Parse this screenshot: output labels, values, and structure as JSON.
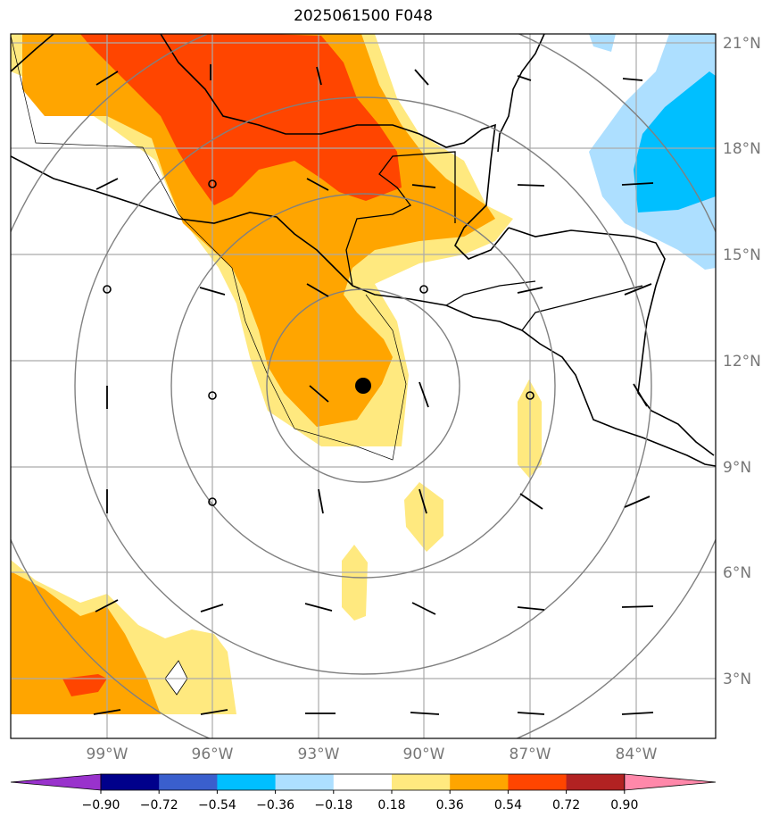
{
  "title": "2025061500 F048",
  "colors": {
    "shade_036_054": "#FFA500",
    "shade_018_036": "#FFE97F",
    "shade_054_072": "#FF4500",
    "shade_neg_018_036": "#ADDFFF",
    "shade_neg_036_054": "#00BFFF",
    "graticule": "#AAAAAA",
    "range_rings": "#808080"
  },
  "map": {
    "lon_labels": [
      "99°W",
      "96°W",
      "93°W",
      "90°W",
      "87°W",
      "84°W"
    ],
    "lat_labels": [
      "21°N",
      "18°N",
      "15°N",
      "12°N",
      "9°N",
      "6°N",
      "3°N"
    ],
    "center_marker": "filled-black-dot",
    "overlay": "wind-barbs"
  },
  "colorbar": {
    "ticks": [
      "−0.90",
      "−0.72",
      "−0.54",
      "−0.36",
      "−0.18",
      "0.18",
      "0.36",
      "0.54",
      "0.72",
      "0.90"
    ],
    "colors": [
      "#9932CC",
      "#00008B",
      "#3A5FCD",
      "#00BFFF",
      "#ADDFFF",
      "#FFFFFF",
      "#FFE97F",
      "#FFA500",
      "#FF4500",
      "#B22222",
      "#FF88AA"
    ]
  }
}
